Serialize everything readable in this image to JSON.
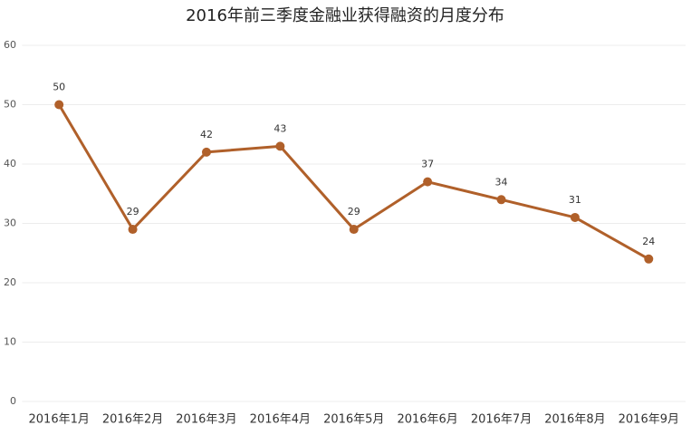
{
  "chart_data": {
    "type": "line",
    "title": "2016年前三季度金融业获得融资的月度分布",
    "categories": [
      "2016年1月",
      "2016年2月",
      "2016年3月",
      "2016年4月",
      "2016年5月",
      "2016年6月",
      "2016年7月",
      "2016年8月",
      "2016年9月"
    ],
    "values": [
      50,
      29,
      42,
      43,
      29,
      37,
      34,
      31,
      24
    ],
    "color": "#b0602a",
    "ylim": [
      0,
      60
    ],
    "yticks": [
      0,
      10,
      20,
      30,
      40,
      50,
      60
    ],
    "grid": true
  }
}
